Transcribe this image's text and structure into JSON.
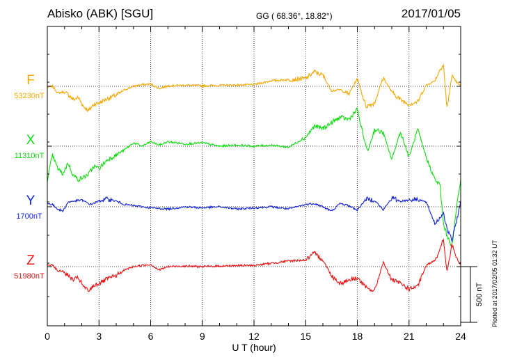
{
  "header": {
    "station": "Abisko (ABK)  [SGU]",
    "coords": "GG ( 68.36°,  18.82°)",
    "date": "2017/01/05"
  },
  "plotted_note": "Plotted at 2017/02/05 01:32 UT",
  "chart_data": {
    "type": "line",
    "xlabel": "U T (hour)",
    "xlim": [
      0,
      24
    ],
    "xticks": [
      0,
      3,
      6,
      9,
      12,
      15,
      18,
      21,
      24
    ],
    "xtick_labels": [
      "0",
      "3",
      "6",
      "9",
      "12",
      "15",
      "18",
      "21",
      "24"
    ],
    "scale_bar": {
      "label": "500 nT",
      "value_nT": 500
    },
    "grid": true,
    "series": [
      {
        "name": "F",
        "baseline_label": "53230nT",
        "color": "#f5a800",
        "x": [
          0,
          0.3,
          0.6,
          0.9,
          1.2,
          1.5,
          1.8,
          2.1,
          2.4,
          2.7,
          3.0,
          3.5,
          4.0,
          4.5,
          5.0,
          5.5,
          6.0,
          6.5,
          7.0,
          8.0,
          9.0,
          10.0,
          11.0,
          12.0,
          13.0,
          14.0,
          15.0,
          15.5,
          16.0,
          16.5,
          17.0,
          17.5,
          18.0,
          18.5,
          19.0,
          19.5,
          20.0,
          20.5,
          21.0,
          21.5,
          22.0,
          22.5,
          22.8,
          23.0,
          23.2,
          23.5,
          23.8,
          24.0
        ],
        "y": [
          -10,
          0,
          -60,
          -50,
          -70,
          -120,
          -100,
          -180,
          -220,
          -160,
          -150,
          -110,
          -80,
          -30,
          0,
          15,
          20,
          -20,
          5,
          10,
          5,
          8,
          12,
          15,
          50,
          60,
          70,
          130,
          100,
          -40,
          -30,
          -70,
          70,
          -180,
          -150,
          80,
          -50,
          -120,
          -160,
          -140,
          10,
          50,
          150,
          200,
          -200,
          100,
          30,
          0
        ]
      },
      {
        "name": "X",
        "baseline_label": "11310nT",
        "color": "#11dd11",
        "x": [
          0,
          0.3,
          0.6,
          0.9,
          1.2,
          1.5,
          1.8,
          2.1,
          2.4,
          2.7,
          3.0,
          3.5,
          4.0,
          4.5,
          5.0,
          5.5,
          6.0,
          6.5,
          7.0,
          8.0,
          9.0,
          10.0,
          11.0,
          12.0,
          13.0,
          14.0,
          15.0,
          15.5,
          16.0,
          16.5,
          17.0,
          17.5,
          18.0,
          18.3,
          18.6,
          19.0,
          19.5,
          20.0,
          20.5,
          21.0,
          21.5,
          22.0,
          22.5,
          22.8,
          23.0,
          23.2,
          23.5,
          23.8,
          24.0
        ],
        "y": [
          -300,
          -80,
          -200,
          -250,
          -150,
          -260,
          -300,
          -280,
          -250,
          -180,
          -200,
          -120,
          -80,
          -30,
          30,
          0,
          40,
          10,
          40,
          20,
          30,
          0,
          10,
          0,
          10,
          -10,
          80,
          180,
          160,
          210,
          260,
          240,
          330,
          120,
          -50,
          150,
          120,
          -120,
          130,
          -100,
          150,
          -100,
          -300,
          -350,
          -700,
          -800,
          -900,
          -500,
          -300
        ]
      },
      {
        "name": "Y",
        "baseline_label": "1700nT",
        "color": "#1122dd",
        "x": [
          0,
          0.3,
          0.6,
          0.9,
          1.2,
          1.5,
          2.0,
          2.5,
          3.0,
          3.5,
          4.0,
          4.5,
          5.0,
          5.5,
          6.0,
          7.0,
          8.0,
          9.0,
          10.0,
          11.0,
          12.0,
          13.0,
          14.0,
          15.0,
          15.5,
          16.0,
          16.5,
          17.0,
          17.5,
          18.0,
          18.5,
          19.0,
          19.5,
          20.0,
          20.5,
          21.0,
          21.5,
          22.0,
          22.5,
          22.8,
          23.0,
          23.2,
          23.5,
          23.8,
          24.0
        ],
        "y": [
          30,
          20,
          -20,
          -40,
          40,
          50,
          60,
          20,
          50,
          70,
          50,
          20,
          10,
          0,
          -10,
          -20,
          0,
          -10,
          0,
          -20,
          -10,
          0,
          -20,
          20,
          30,
          0,
          -40,
          30,
          10,
          -30,
          70,
          60,
          -30,
          80,
          50,
          60,
          70,
          40,
          -150,
          -100,
          -50,
          -200,
          -300,
          -100,
          50
        ]
      },
      {
        "name": "Z",
        "baseline_label": "51980nT",
        "color": "#ee1111",
        "x": [
          0,
          0.3,
          0.6,
          0.9,
          1.2,
          1.5,
          1.8,
          2.1,
          2.4,
          2.7,
          3.0,
          3.5,
          4.0,
          4.5,
          5.0,
          5.5,
          6.0,
          6.5,
          7.0,
          8.0,
          9.0,
          10.0,
          11.0,
          12.0,
          13.0,
          14.0,
          15.0,
          15.5,
          16.0,
          16.5,
          17.0,
          17.5,
          18.0,
          18.5,
          19.0,
          19.5,
          20.0,
          20.5,
          21.0,
          21.5,
          22.0,
          22.5,
          22.8,
          23.0,
          23.2,
          23.5,
          23.8,
          24.0
        ],
        "y": [
          10,
          20,
          -40,
          -40,
          -80,
          -120,
          -100,
          -180,
          -220,
          -170,
          -150,
          -110,
          -80,
          -30,
          0,
          10,
          20,
          -30,
          0,
          5,
          0,
          5,
          10,
          10,
          30,
          50,
          60,
          120,
          60,
          -80,
          -150,
          -120,
          -100,
          -190,
          -220,
          40,
          -120,
          -150,
          -200,
          -180,
          10,
          60,
          150,
          250,
          -50,
          200,
          60,
          20
        ]
      }
    ]
  }
}
